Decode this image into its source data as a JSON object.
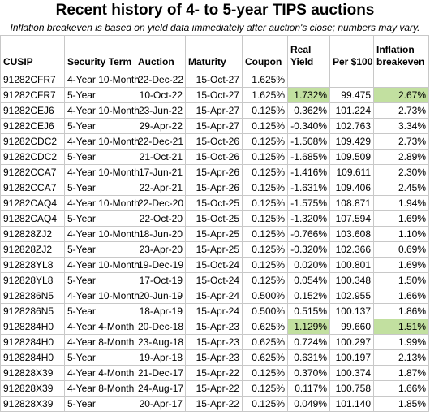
{
  "title": "Recent history of 4- to 5-year TIPS auctions",
  "subtitle": "Inflation breakeven is based on yield data immediately after auction's close; numbers may vary.",
  "colors": {
    "highlight": "#c2e0a0",
    "grid": "#c8c8c8"
  },
  "headers": {
    "cusip": "CUSIP",
    "term": "Security Term",
    "auction": "Auction",
    "maturity": "Maturity",
    "coupon": "Coupon",
    "real_yield_1": "Real",
    "real_yield_2": "Yield",
    "price": "Per $100",
    "infl_1": "Inflation",
    "infl_2": "breakeven"
  },
  "rows": [
    {
      "cusip": "91282CFR7",
      "term": "4-Year 10-Month",
      "auction": "22-Dec-22",
      "maturity": "15-Oct-27",
      "coupon": "1.625%",
      "real_yield": "",
      "price": "",
      "breakeven": "",
      "hl": false
    },
    {
      "cusip": "91282CFR7",
      "term": "5-Year",
      "auction": "10-Oct-22",
      "maturity": "15-Oct-27",
      "coupon": "1.625%",
      "real_yield": "1.732%",
      "price": "99.475",
      "breakeven": "2.67%",
      "hl": true
    },
    {
      "cusip": "91282CEJ6",
      "term": "4-Year 10-Month",
      "auction": "23-Jun-22",
      "maturity": "15-Apr-27",
      "coupon": "0.125%",
      "real_yield": "0.362%",
      "price": "101.224",
      "breakeven": "2.73%",
      "hl": false
    },
    {
      "cusip": "91282CEJ6",
      "term": "5-Year",
      "auction": "29-Apr-22",
      "maturity": "15-Apr-27",
      "coupon": "0.125%",
      "real_yield": "-0.340%",
      "price": "102.763",
      "breakeven": "3.34%",
      "hl": false
    },
    {
      "cusip": "91282CDC2",
      "term": "4-Year 10-Month",
      "auction": "22-Dec-21",
      "maturity": "15-Oct-26",
      "coupon": "0.125%",
      "real_yield": "-1.508%",
      "price": "109.429",
      "breakeven": "2.73%",
      "hl": false
    },
    {
      "cusip": "91282CDC2",
      "term": "5-Year",
      "auction": "21-Oct-21",
      "maturity": "15-Oct-26",
      "coupon": "0.125%",
      "real_yield": "-1.685%",
      "price": "109.509",
      "breakeven": "2.89%",
      "hl": false
    },
    {
      "cusip": "91282CCA7",
      "term": "4-Year 10-Month",
      "auction": "17-Jun-21",
      "maturity": "15-Apr-26",
      "coupon": "0.125%",
      "real_yield": "-1.416%",
      "price": "109.611",
      "breakeven": "2.30%",
      "hl": false
    },
    {
      "cusip": "91282CCA7",
      "term": "5-Year",
      "auction": "22-Apr-21",
      "maturity": "15-Apr-26",
      "coupon": "0.125%",
      "real_yield": "-1.631%",
      "price": "109.406",
      "breakeven": "2.45%",
      "hl": false
    },
    {
      "cusip": "91282CAQ4",
      "term": "4-Year 10-Month",
      "auction": "22-Dec-20",
      "maturity": "15-Oct-25",
      "coupon": "0.125%",
      "real_yield": "-1.575%",
      "price": "108.871",
      "breakeven": "1.94%",
      "hl": false
    },
    {
      "cusip": "91282CAQ4",
      "term": "5-Year",
      "auction": "22-Oct-20",
      "maturity": "15-Oct-25",
      "coupon": "0.125%",
      "real_yield": "-1.320%",
      "price": "107.594",
      "breakeven": "1.69%",
      "hl": false
    },
    {
      "cusip": "912828ZJ2",
      "term": "4-Year 10-Month",
      "auction": "18-Jun-20",
      "maturity": "15-Apr-25",
      "coupon": "0.125%",
      "real_yield": "-0.766%",
      "price": "103.608",
      "breakeven": "1.10%",
      "hl": false
    },
    {
      "cusip": "912828ZJ2",
      "term": "5-Year",
      "auction": "23-Apr-20",
      "maturity": "15-Apr-25",
      "coupon": "0.125%",
      "real_yield": "-0.320%",
      "price": "102.366",
      "breakeven": "0.69%",
      "hl": false
    },
    {
      "cusip": "912828YL8",
      "term": "4-Year 10-Month",
      "auction": "19-Dec-19",
      "maturity": "15-Oct-24",
      "coupon": "0.125%",
      "real_yield": "0.020%",
      "price": "100.801",
      "breakeven": "1.69%",
      "hl": false
    },
    {
      "cusip": "912828YL8",
      "term": "5-Year",
      "auction": "17-Oct-19",
      "maturity": "15-Oct-24",
      "coupon": "0.125%",
      "real_yield": "0.054%",
      "price": "100.348",
      "breakeven": "1.50%",
      "hl": false
    },
    {
      "cusip": "9128286N5",
      "term": "4-Year 10-Month",
      "auction": "20-Jun-19",
      "maturity": "15-Apr-24",
      "coupon": "0.500%",
      "real_yield": "0.152%",
      "price": "102.955",
      "breakeven": "1.66%",
      "hl": false
    },
    {
      "cusip": "9128286N5",
      "term": "5-Year",
      "auction": "18-Apr-19",
      "maturity": "15-Apr-24",
      "coupon": "0.500%",
      "real_yield": "0.515%",
      "price": "100.137",
      "breakeven": "1.86%",
      "hl": false
    },
    {
      "cusip": "9128284H0",
      "term": "4-Year 4-Month",
      "auction": "20-Dec-18",
      "maturity": "15-Apr-23",
      "coupon": "0.625%",
      "real_yield": "1.129%",
      "price": "99.660",
      "breakeven": "1.51%",
      "hl": true
    },
    {
      "cusip": "9128284H0",
      "term": "4-Year 8-Month",
      "auction": "23-Aug-18",
      "maturity": "15-Apr-23",
      "coupon": "0.625%",
      "real_yield": "0.724%",
      "price": "100.297",
      "breakeven": "1.99%",
      "hl": false
    },
    {
      "cusip": "9128284H0",
      "term": "5-Year",
      "auction": "19-Apr-18",
      "maturity": "15-Apr-23",
      "coupon": "0.625%",
      "real_yield": "0.631%",
      "price": "100.197",
      "breakeven": "2.13%",
      "hl": false
    },
    {
      "cusip": "912828X39",
      "term": "4-Year 4-Month",
      "auction": "21-Dec-17",
      "maturity": "15-Apr-22",
      "coupon": "0.125%",
      "real_yield": "0.370%",
      "price": "100.374",
      "breakeven": "1.87%",
      "hl": false
    },
    {
      "cusip": "912828X39",
      "term": "4-Year 8-Month",
      "auction": "24-Aug-17",
      "maturity": "15-Apr-22",
      "coupon": "0.125%",
      "real_yield": "0.117%",
      "price": "100.758",
      "breakeven": "1.66%",
      "hl": false
    },
    {
      "cusip": "912828X39",
      "term": "5-Year",
      "auction": "20-Apr-17",
      "maturity": "15-Apr-22",
      "coupon": "0.125%",
      "real_yield": "0.049%",
      "price": "101.140",
      "breakeven": "1.85%",
      "hl": false
    }
  ]
}
